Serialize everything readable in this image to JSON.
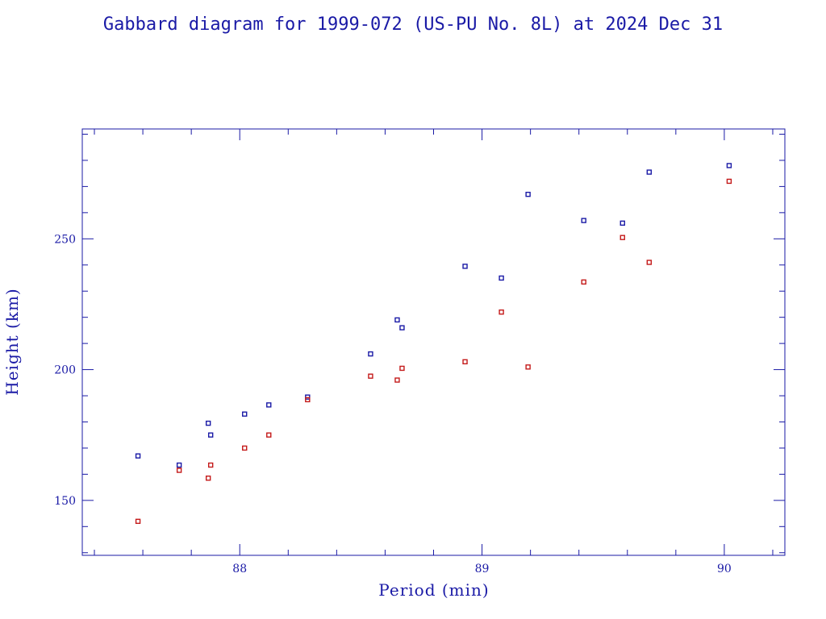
{
  "chart_data": {
    "type": "scatter",
    "title": "Gabbard diagram for 1999-072 (US-PU No. 8L) at 2024 Dec 31",
    "xlabel": "Period (min)",
    "ylabel": "Height (km)",
    "xlim": [
      87.35,
      90.25
    ],
    "ylim": [
      129,
      292
    ],
    "x_ticks": [
      88,
      89,
      90
    ],
    "y_ticks": [
      150,
      200,
      250
    ],
    "x_minor_step": 0.2,
    "y_minor_step": 10,
    "grid": false,
    "legend": "none",
    "marker": "open-square",
    "series": [
      {
        "color": "#1a1aa6",
        "points": [
          [
            87.58,
            167
          ],
          [
            87.75,
            163.5
          ],
          [
            87.87,
            179.5
          ],
          [
            87.88,
            175
          ],
          [
            88.02,
            183
          ],
          [
            88.12,
            186.5
          ],
          [
            88.28,
            189.5
          ],
          [
            88.54,
            206
          ],
          [
            88.65,
            219
          ],
          [
            88.67,
            216
          ],
          [
            88.93,
            239.5
          ],
          [
            89.08,
            235
          ],
          [
            89.19,
            267
          ],
          [
            89.42,
            257
          ],
          [
            89.58,
            256
          ],
          [
            89.69,
            275.5
          ],
          [
            90.02,
            278
          ]
        ]
      },
      {
        "color": "#c41a1a",
        "points": [
          [
            87.58,
            142
          ],
          [
            87.75,
            161.5
          ],
          [
            87.87,
            158.5
          ],
          [
            87.88,
            163.5
          ],
          [
            88.02,
            170
          ],
          [
            88.12,
            175
          ],
          [
            88.28,
            188.5
          ],
          [
            88.54,
            197.5
          ],
          [
            88.65,
            196
          ],
          [
            88.67,
            200.5
          ],
          [
            88.93,
            203
          ],
          [
            89.08,
            222
          ],
          [
            89.19,
            201
          ],
          [
            89.42,
            233.5
          ],
          [
            89.58,
            250.5
          ],
          [
            89.69,
            241
          ],
          [
            90.02,
            272
          ]
        ]
      }
    ]
  }
}
